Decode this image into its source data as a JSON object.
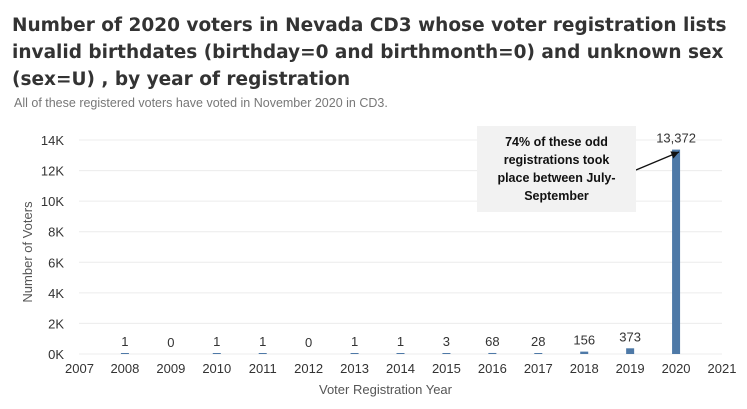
{
  "chart_data": {
    "type": "bar",
    "title": "Number of 2020 voters in Nevada CD3 whose voter registration lists invalid birthdates (birthday=0 and birthmonth=0) and unknown sex (sex=U) , by year of registration",
    "subtitle": "All of these registered voters have voted in November 2020 in CD3.",
    "xlabel": "Voter Registration Year",
    "ylabel": "Number of Voters",
    "xlim": [
      2007,
      2021
    ],
    "ylim": [
      0,
      14000
    ],
    "x_ticks": [
      "2007",
      "2008",
      "2009",
      "2010",
      "2011",
      "2012",
      "2013",
      "2014",
      "2015",
      "2016",
      "2017",
      "2018",
      "2019",
      "2020",
      "2021"
    ],
    "y_ticks": [
      {
        "value": 0,
        "label": "0K"
      },
      {
        "value": 2000,
        "label": "2K"
      },
      {
        "value": 4000,
        "label": "4K"
      },
      {
        "value": 6000,
        "label": "6K"
      },
      {
        "value": 8000,
        "label": "8K"
      },
      {
        "value": 10000,
        "label": "10K"
      },
      {
        "value": 12000,
        "label": "12K"
      },
      {
        "value": 14000,
        "label": "14K"
      }
    ],
    "categories": [
      2008,
      2009,
      2010,
      2011,
      2012,
      2013,
      2014,
      2015,
      2016,
      2017,
      2018,
      2019,
      2020
    ],
    "values": [
      1,
      0,
      1,
      1,
      0,
      1,
      1,
      3,
      68,
      28,
      156,
      373,
      13372
    ],
    "data_labels": [
      "1",
      "0",
      "1",
      "1",
      "0",
      "1",
      "1",
      "3",
      "68",
      "28",
      "156",
      "373",
      "13,372"
    ],
    "bar_color": "#4e79a7",
    "annotation": "74% of these odd registrations took place between July-September"
  }
}
